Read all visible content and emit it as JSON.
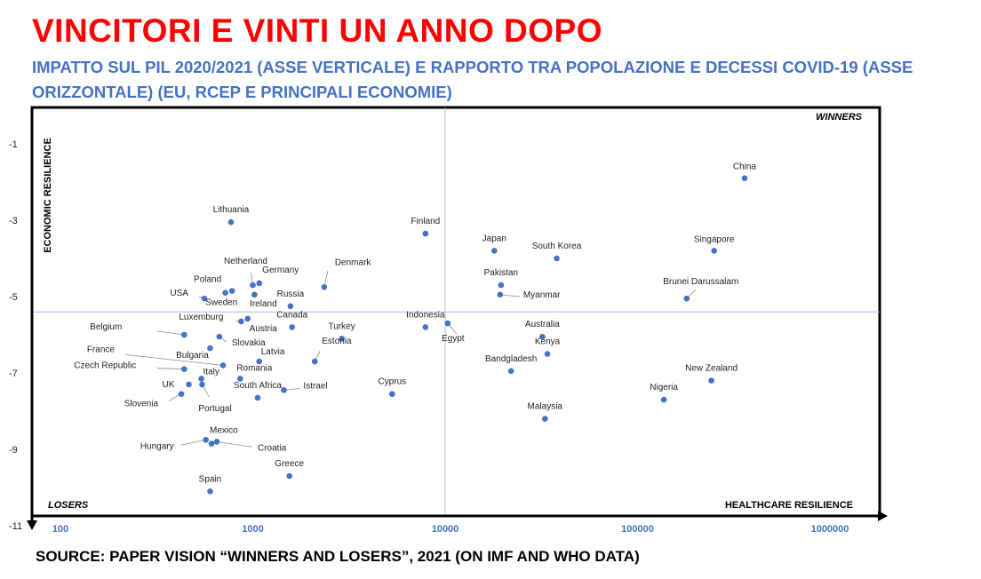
{
  "title": "VINCITORI E VINTI UN ANNO DOPO",
  "subtitle": "IMPATTO SUL PIL 2020/2021 (ASSE VERTICALE) E RAPPORTO TRA POPOLAZIONE E DECESSI COVID-19 (ASSE ORIZZONTALE) (EU, RCEP E PRINCIPALI ECONOMIE)",
  "source": "SOURCE: PAPER VISION “WINNERS AND LOSERS”, 2021 (ON IMF AND WHO DATA)",
  "colors": {
    "title": "#ff0000",
    "subtitle": "#4472c4",
    "marker": "#4472c4",
    "divider": "#a9bfe2",
    "frame": "#000000"
  },
  "chart_data": {
    "type": "scatter",
    "x_scale": "log",
    "xlim": [
      100,
      1000000
    ],
    "ylim": [
      -11,
      -0.3
    ],
    "x_ticks": [
      "100",
      "1000",
      "10000",
      "100000",
      "1000000"
    ],
    "y_ticks": [
      "-1",
      "-3",
      "-5",
      "-7",
      "-9",
      "-11"
    ],
    "ylabel": "ECONOMIC RESILIENCE",
    "xlabel": "HEALTHCARE RESILIENCE",
    "quadrant_labels": {
      "winners": "WINNERS",
      "losers": "LOSERS"
    },
    "divider": {
      "x": 10000,
      "y": -5.4
    },
    "points": [
      {
        "label": "China",
        "x": 360000,
        "y": -1.9
      },
      {
        "label": "Singapore",
        "x": 250000,
        "y": -3.8
      },
      {
        "label": "Brunei Darussalam",
        "x": 180000,
        "y": -5.05
      },
      {
        "label": "New Zealand",
        "x": 242000,
        "y": -7.2
      },
      {
        "label": "Nigeria",
        "x": 137000,
        "y": -7.7
      },
      {
        "label": "South Korea",
        "x": 38000,
        "y": -4.0
      },
      {
        "label": "Japan",
        "x": 18000,
        "y": -3.8
      },
      {
        "label": "Pakistan",
        "x": 19500,
        "y": -4.7
      },
      {
        "label": "Myanmar",
        "x": 19300,
        "y": -4.95
      },
      {
        "label": "Australia",
        "x": 32000,
        "y": -6.05
      },
      {
        "label": "Kenya",
        "x": 34000,
        "y": -6.5
      },
      {
        "label": "Bandgladesh",
        "x": 22000,
        "y": -6.95
      },
      {
        "label": "Malaysia",
        "x": 33000,
        "y": -8.2
      },
      {
        "label": "Finland",
        "x": 7900,
        "y": -3.35
      },
      {
        "label": "Indonesia",
        "x": 7900,
        "y": -5.8
      },
      {
        "label": "Egypt",
        "x": 10300,
        "y": -5.7
      },
      {
        "label": "Cyprus",
        "x": 5300,
        "y": -7.55
      },
      {
        "label": "Denmark",
        "x": 2350,
        "y": -4.75
      },
      {
        "label": "Turkey",
        "x": 2900,
        "y": -6.1
      },
      {
        "label": "Estonia",
        "x": 2100,
        "y": -6.7
      },
      {
        "label": "Istrael",
        "x": 1450,
        "y": -7.45
      },
      {
        "label": "Canada",
        "x": 1600,
        "y": -5.8
      },
      {
        "label": "Russia",
        "x": 1570,
        "y": -5.25
      },
      {
        "label": "Germany",
        "x": 1080,
        "y": -4.65
      },
      {
        "label": "Netherland",
        "x": 1000,
        "y": -4.7
      },
      {
        "label": "Ireland",
        "x": 1020,
        "y": -4.95
      },
      {
        "label": "Sweden",
        "x": 780,
        "y": -4.85
      },
      {
        "label": "Poland",
        "x": 720,
        "y": -4.9
      },
      {
        "label": "Lithuania",
        "x": 770,
        "y": -3.05
      },
      {
        "label": "USA",
        "x": 560,
        "y": -5.05
      },
      {
        "label": "Luxemburg",
        "x": 870,
        "y": -5.65
      },
      {
        "label": "Austria",
        "x": 940,
        "y": -5.58
      },
      {
        "label": "Belgium",
        "x": 440,
        "y": -6.0
      },
      {
        "label": "Bulgaria",
        "x": 600,
        "y": -6.35
      },
      {
        "label": "Slovakia",
        "x": 670,
        "y": -6.05
      },
      {
        "label": "France",
        "x": 700,
        "y": -6.8
      },
      {
        "label": "Latvia",
        "x": 1080,
        "y": -6.7
      },
      {
        "label": "Czech Republic",
        "x": 440,
        "y": -6.9
      },
      {
        "label": "Romania",
        "x": 860,
        "y": -7.15
      },
      {
        "label": "Italy",
        "x": 540,
        "y": -7.15
      },
      {
        "label": "Portugal",
        "x": 545,
        "y": -7.3
      },
      {
        "label": "UK",
        "x": 465,
        "y": -7.3
      },
      {
        "label": "Slovenia",
        "x": 425,
        "y": -7.55
      },
      {
        "label": "South Africa",
        "x": 1060,
        "y": -7.65
      },
      {
        "label": "Mexico",
        "x": 610,
        "y": -8.85
      },
      {
        "label": "Hungary",
        "x": 570,
        "y": -8.75
      },
      {
        "label": "Croatia",
        "x": 650,
        "y": -8.8
      },
      {
        "label": "Greece",
        "x": 1550,
        "y": -9.7
      },
      {
        "label": "Spain",
        "x": 600,
        "y": -10.1
      }
    ]
  }
}
